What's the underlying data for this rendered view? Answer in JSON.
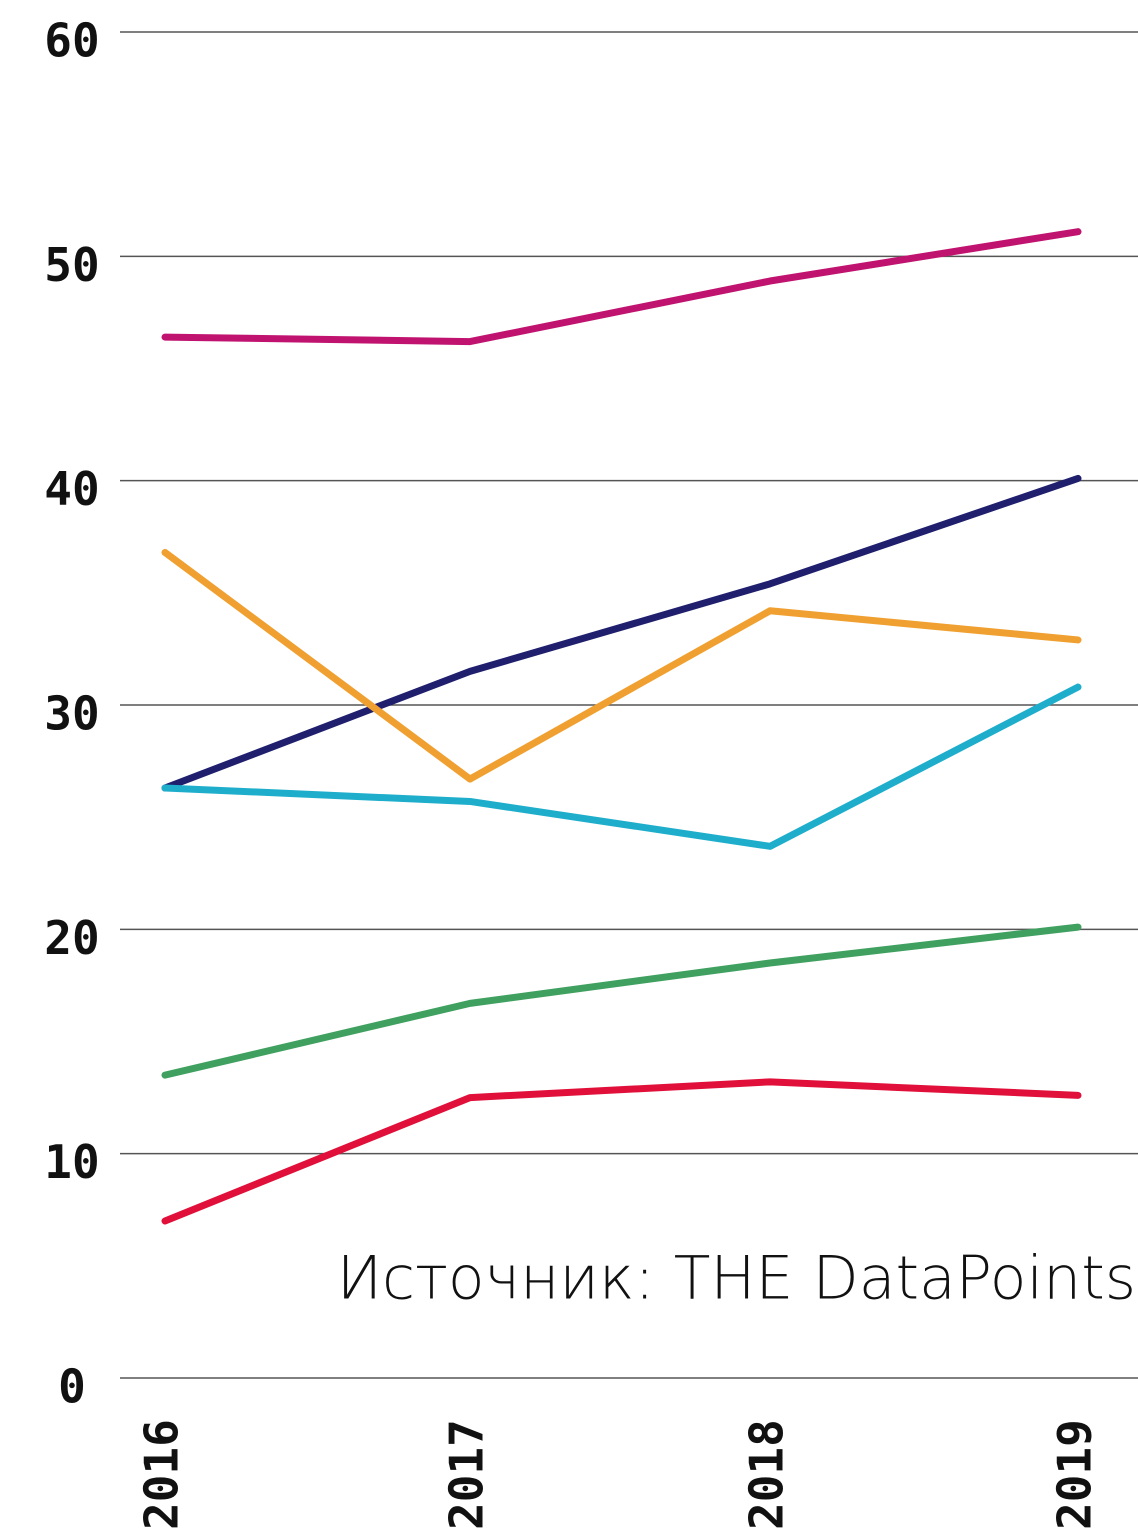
{
  "chart_data": {
    "type": "line",
    "categories": [
      "2016",
      "2017",
      "2018",
      "2019"
    ],
    "series": [
      {
        "color": "#c0136f",
        "values": [
          46.4,
          46.2,
          48.9,
          51.1
        ]
      },
      {
        "color": "#1f1f6e",
        "values": [
          26.3,
          31.5,
          35.4,
          40.1
        ]
      },
      {
        "color": "#f0a030",
        "values": [
          36.8,
          26.7,
          34.2,
          32.9
        ]
      },
      {
        "color": "#1eaecb",
        "values": [
          26.3,
          25.7,
          23.7,
          30.8
        ]
      },
      {
        "color": "#3fa060",
        "values": [
          13.5,
          16.7,
          18.5,
          20.1
        ]
      },
      {
        "color": "#e0103a",
        "values": [
          7.0,
          12.5,
          13.2,
          12.6
        ]
      }
    ],
    "annotation": "Источник: THE DataPoints",
    "ylim": [
      0,
      60
    ],
    "yticks": [
      0,
      10,
      20,
      30,
      40,
      50,
      60
    ],
    "grid": true
  }
}
